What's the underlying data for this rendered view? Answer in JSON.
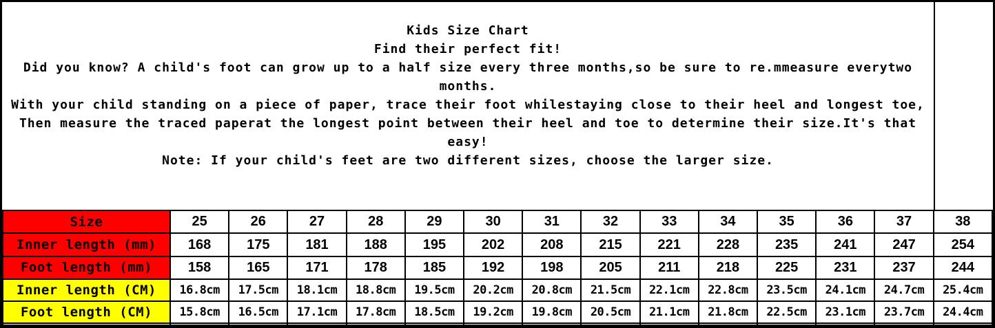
{
  "title_block": {
    "lines": [
      "Kids Size Chart",
      "Find their perfect fit!",
      "Did you know? A child's foot can grow up to a half size every three months,so be sure to re.mmeasure everytwo",
      "months.",
      "With your child standing on a piece of paper, trace their foot whilestaying close to their heel and longest toe,",
      "Then measure the traced paperat the longest point between their heel and toe to determine their size.It's that",
      "easy!",
      "Note: If your child's feet are two different sizes, choose the larger size."
    ]
  },
  "table": {
    "rows": [
      {
        "key": "size",
        "label": "Size",
        "label_bg": "#fe0000",
        "value_style": "int",
        "values": [
          "25",
          "26",
          "27",
          "28",
          "29",
          "30",
          "31",
          "32",
          "33",
          "34",
          "35",
          "36",
          "37",
          "38"
        ]
      },
      {
        "key": "inner-length-mm",
        "label": "Inner length (mm)",
        "label_bg": "#fe0000",
        "value_style": "int",
        "values": [
          "168",
          "175",
          "181",
          "188",
          "195",
          "202",
          "208",
          "215",
          "221",
          "228",
          "235",
          "241",
          "247",
          "254"
        ]
      },
      {
        "key": "foot-length-mm",
        "label": "Foot length (mm)",
        "label_bg": "#fe0000",
        "value_style": "int",
        "values": [
          "158",
          "165",
          "171",
          "178",
          "185",
          "192",
          "198",
          "205",
          "211",
          "218",
          "225",
          "231",
          "237",
          "244"
        ]
      },
      {
        "key": "inner-length-cm",
        "label": "Inner length (CM)",
        "label_bg": "#ffff00",
        "value_style": "cm",
        "values": [
          "16.8cm",
          "17.5cm",
          "18.1cm",
          "18.8cm",
          "19.5cm",
          "20.2cm",
          "20.8cm",
          "21.5cm",
          "22.1cm",
          "22.8cm",
          "23.5cm",
          "24.1cm",
          "24.7cm",
          "25.4cm"
        ]
      },
      {
        "key": "foot-length-cm",
        "label": "Foot length (CM)",
        "label_bg": "#ffff00",
        "value_style": "cm",
        "values": [
          "15.8cm",
          "16.5cm",
          "17.1cm",
          "17.8cm",
          "18.5cm",
          "19.2cm",
          "19.8cm",
          "20.5cm",
          "21.1cm",
          "21.8cm",
          "22.5cm",
          "23.1cm",
          "23.7cm",
          "24.4cm"
        ]
      },
      {
        "key": "empty-row",
        "label": "",
        "label_bg": "#ffffff",
        "value_style": "int",
        "values": [
          "",
          "",
          "",
          "",
          "",
          "",
          "",
          "",
          "",
          "",
          "",
          "",
          "",
          ""
        ]
      }
    ]
  },
  "chart_data": {
    "type": "table",
    "title": "Kids Size Chart",
    "subtitle": "Find their perfect fit!",
    "categories": [
      25,
      26,
      27,
      28,
      29,
      30,
      31,
      32,
      33,
      34,
      35,
      36,
      37,
      38
    ],
    "series": [
      {
        "name": "Inner length (mm)",
        "values": [
          168,
          175,
          181,
          188,
          195,
          202,
          208,
          215,
          221,
          228,
          235,
          241,
          247,
          254
        ]
      },
      {
        "name": "Foot length (mm)",
        "values": [
          158,
          165,
          171,
          178,
          185,
          192,
          198,
          205,
          211,
          218,
          225,
          231,
          237,
          244
        ]
      },
      {
        "name": "Inner length (CM)",
        "values": [
          16.8,
          17.5,
          18.1,
          18.8,
          19.5,
          20.2,
          20.8,
          21.5,
          22.1,
          22.8,
          23.5,
          24.1,
          24.7,
          25.4
        ]
      },
      {
        "name": "Foot length (CM)",
        "values": [
          15.8,
          16.5,
          17.1,
          17.8,
          18.5,
          19.2,
          19.8,
          20.5,
          21.1,
          21.8,
          22.5,
          23.1,
          23.7,
          24.4
        ]
      }
    ],
    "notes": [
      "Did you know? A child's foot can grow up to a half size every three months,so be sure to re.mmeasure everytwo months.",
      "With your child standing on a piece of paper, trace their foot whilestaying close to their heel and longest toe, Then measure the traced paperat the longest point between their heel and toe to determine their size.It's that easy!",
      "Note: If your child's feet are two different sizes, choose the larger size."
    ]
  },
  "colors": {
    "label_red": "#fe0000",
    "label_yellow": "#ffff00",
    "border": "#000000",
    "background": "#ffffff",
    "text": "#000000"
  }
}
